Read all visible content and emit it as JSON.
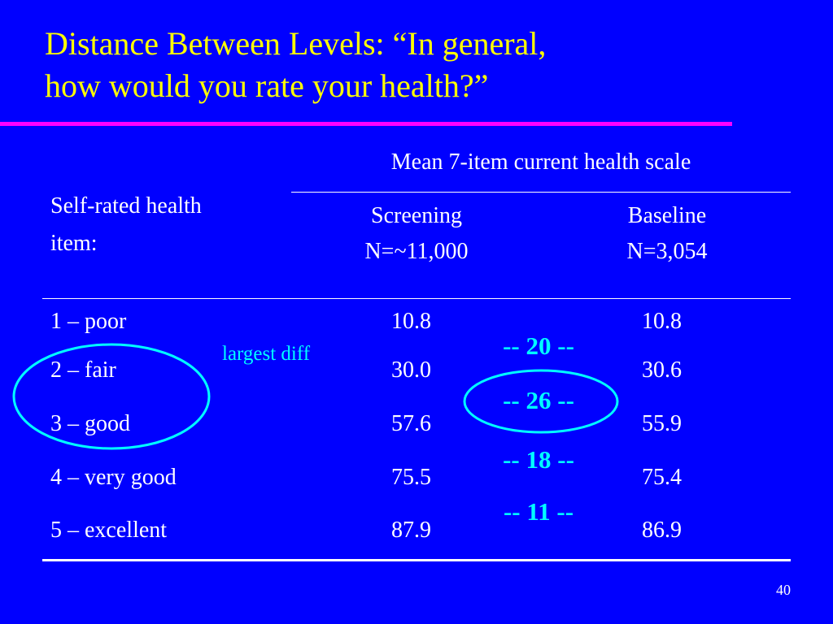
{
  "title": {
    "line1": "Distance Between Levels: “In general,",
    "line2": "how would you rate your health?”"
  },
  "table": {
    "group_header": "Mean 7-item current health scale",
    "row_header": [
      "Self-rated health",
      "item:"
    ],
    "columns": [
      {
        "name": "Screening",
        "n": "N=~11,000"
      },
      {
        "name": "Baseline",
        "n": "N=3,054"
      }
    ],
    "rows": [
      {
        "item": "1 – poor",
        "screening": "10.8",
        "baseline": "10.8"
      },
      {
        "item": "2 – fair",
        "screening": "30.0",
        "baseline": "30.6"
      },
      {
        "item": "3 – good",
        "screening": "57.6",
        "baseline": "55.9"
      },
      {
        "item": "4 – very good",
        "screening": "75.5",
        "baseline": "75.4"
      },
      {
        "item": "5 – excellent",
        "screening": "87.9",
        "baseline": "86.9"
      }
    ]
  },
  "differences": [
    "-- 20 --",
    "-- 26 --",
    "-- 18 --",
    "-- 11 --"
  ],
  "annotation": {
    "text": "largest diff",
    "color": "#00ffff"
  },
  "colors": {
    "background": "#0000ff",
    "title": "#ffff00",
    "rule": "#ff00ff",
    "annotation": "#00ffff"
  },
  "slide_number": "40"
}
